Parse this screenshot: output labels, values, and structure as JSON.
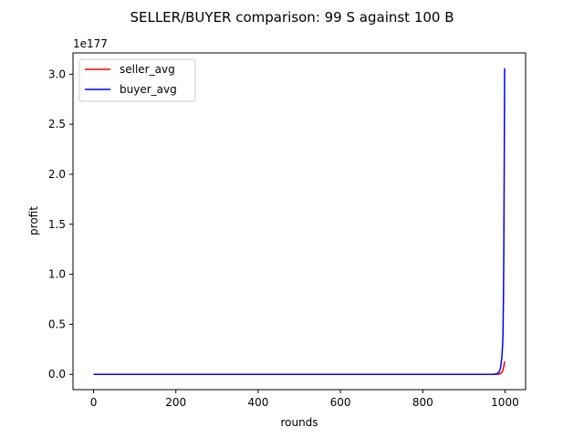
{
  "chart_data": {
    "type": "line",
    "title": "SELLER/BUYER comparison: 99 S against 100 B",
    "xlabel": "rounds",
    "ylabel": "profit",
    "y_offset_label": "1e177",
    "xlim": [
      -50,
      1050
    ],
    "ylim": [
      -0.153,
      3.213
    ],
    "xticks": [
      0,
      200,
      400,
      600,
      800,
      1000
    ],
    "xtick_labels": [
      "0",
      "200",
      "400",
      "600",
      "800",
      "1000"
    ],
    "yticks": [
      0.0,
      0.5,
      1.0,
      1.5,
      2.0,
      2.5,
      3.0
    ],
    "ytick_labels": [
      "0.0",
      "0.5",
      "1.0",
      "1.5",
      "2.0",
      "2.5",
      "3.0"
    ],
    "grid": false,
    "legend_position": "top-left",
    "series": [
      {
        "name": "seller_avg",
        "color": "#ff0000",
        "x": [
          0,
          900,
          970,
          980,
          985,
          990,
          993,
          995,
          997,
          998,
          999
        ],
        "y": [
          0,
          0,
          0,
          0.0005,
          0.002,
          0.01,
          0.025,
          0.045,
          0.075,
          0.1,
          0.13
        ]
      },
      {
        "name": "buyer_avg",
        "color": "#0000ff",
        "x": [
          0,
          900,
          970,
          980,
          985,
          988,
          990,
          992,
          994,
          995,
          996,
          997,
          998,
          999
        ],
        "y": [
          0,
          0,
          0,
          0.005,
          0.02,
          0.05,
          0.09,
          0.16,
          0.28,
          0.4,
          0.7,
          1.2,
          2.0,
          3.06
        ]
      }
    ]
  }
}
